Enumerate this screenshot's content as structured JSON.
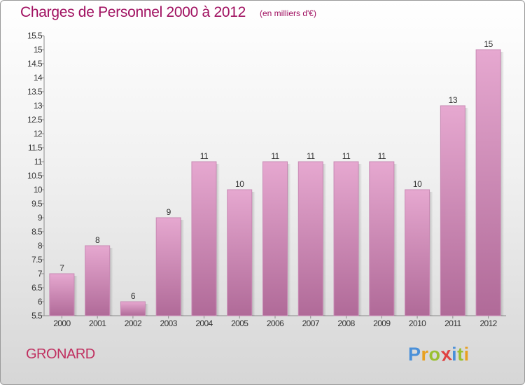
{
  "title": "Charges de Personnel 2000 à 2012",
  "subtitle": "(en milliers d'€)",
  "commune": "GRONARD",
  "brand": {
    "letters": [
      "P",
      "r",
      "o",
      "x",
      "i",
      "t",
      "i"
    ],
    "colors": [
      "#4a90d9",
      "#e8a020",
      "#9ac030",
      "#e04040",
      "#4a90d9",
      "#9ac030",
      "#e8a020"
    ]
  },
  "colors": {
    "title": "#a01060",
    "bar_top": "#e6a8d0",
    "bar_bottom": "#b06a98",
    "bar_border": "#c88ab4"
  },
  "chart_data": {
    "type": "bar",
    "title": "Charges de Personnel 2000 à 2012",
    "subtitle": "(en milliers d'€)",
    "categories": [
      "2000",
      "2001",
      "2002",
      "2003",
      "2004",
      "2005",
      "2006",
      "2007",
      "2008",
      "2009",
      "2010",
      "2011",
      "2012"
    ],
    "values": [
      7,
      8,
      6,
      9,
      11,
      10,
      11,
      11,
      11,
      11,
      10,
      13,
      15
    ],
    "ylim": [
      5.5,
      15.5
    ],
    "yticks": [
      "5.5",
      "6",
      "6.5",
      "7",
      "7.5",
      "8",
      "8.5",
      "9",
      "9.5",
      "10",
      "10.5",
      "11",
      "11.5",
      "12",
      "12.5",
      "13",
      "13.5",
      "14",
      "14.5",
      "15",
      "15.5"
    ],
    "grid": false,
    "legend": "none"
  }
}
